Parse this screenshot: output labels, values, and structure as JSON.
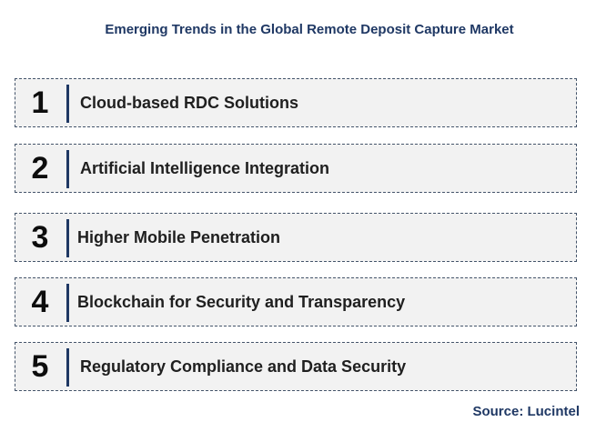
{
  "title": "Emerging Trends in the Global Remote Deposit Capture Market",
  "trends": [
    {
      "number": "1",
      "label": "Cloud-based RDC Solutions"
    },
    {
      "number": "2",
      "label": "Artificial Intelligence Integration"
    },
    {
      "number": "3",
      "label": "Higher Mobile Penetration"
    },
    {
      "number": "4",
      "label": "Blockchain for Security and Transparency"
    },
    {
      "number": "5",
      "label": "Regulatory Compliance and Data Security"
    }
  ],
  "source": "Source: Lucintel",
  "colors": {
    "title": "#1f3864",
    "box_fill": "#f2f2f2",
    "box_border": "#44546a",
    "divider": "#1f3864",
    "text": "#1f1f1f"
  }
}
